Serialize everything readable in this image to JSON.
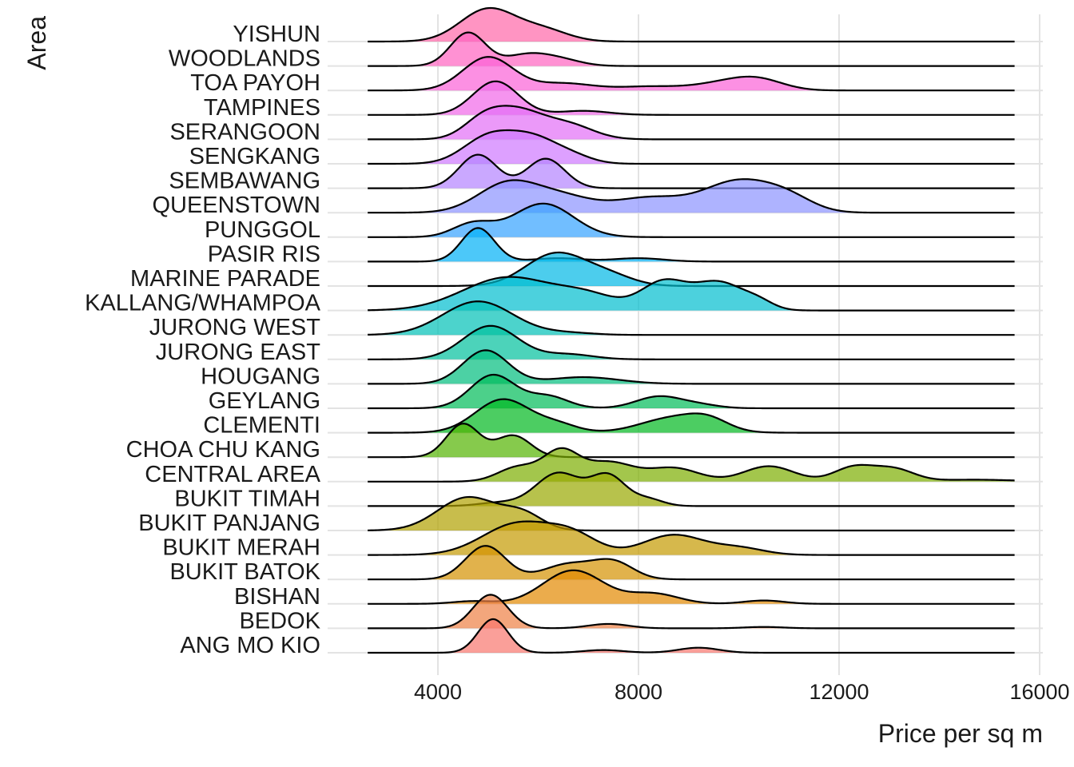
{
  "chart_data": {
    "type": "ridgeline",
    "xlabel": "Price per sq m",
    "ylabel": "Area",
    "x_ticks": [
      4000,
      8000,
      12000,
      16000
    ],
    "xlim": [
      2600,
      16000
    ],
    "grid": true,
    "legend": "none",
    "series": [
      {
        "name": "ANG MO KIO",
        "color": "#F8766D",
        "peaks": [
          [
            5100,
            1.0,
            300
          ],
          [
            7300,
            0.08,
            400
          ],
          [
            9200,
            0.15,
            400
          ]
        ]
      },
      {
        "name": "BEDOK",
        "color": "#EE8044",
        "peaks": [
          [
            5050,
            1.0,
            350
          ],
          [
            7400,
            0.13,
            400
          ],
          [
            10500,
            0.04,
            400
          ]
        ]
      },
      {
        "name": "BISHAN",
        "color": "#E38900",
        "peaks": [
          [
            4700,
            0.08,
            400
          ],
          [
            6700,
            1.0,
            600
          ],
          [
            8300,
            0.3,
            500
          ],
          [
            10500,
            0.1,
            400
          ]
        ]
      },
      {
        "name": "BUKIT BATOK",
        "color": "#D49200",
        "peaks": [
          [
            4950,
            1.0,
            400
          ],
          [
            6600,
            0.45,
            500
          ],
          [
            7500,
            0.5,
            400
          ]
        ]
      },
      {
        "name": "BUKIT MERAH",
        "color": "#C49A00",
        "peaks": [
          [
            5600,
            0.55,
            700
          ],
          [
            6700,
            0.3,
            500
          ],
          [
            8700,
            0.35,
            600
          ],
          [
            10000,
            0.12,
            500
          ]
        ]
      },
      {
        "name": "BUKIT PANJANG",
        "color": "#B0A100",
        "peaks": [
          [
            4600,
            1.0,
            600
          ],
          [
            5700,
            0.45,
            400
          ]
        ]
      },
      {
        "name": "BUKIT TIMAH",
        "color": "#99A800",
        "peaks": [
          [
            6400,
            1.0,
            450
          ],
          [
            7400,
            0.9,
            350
          ],
          [
            5200,
            0.1,
            400
          ],
          [
            8200,
            0.2,
            300
          ]
        ]
      },
      {
        "name": "CENTRAL AREA",
        "color": "#7CAE00",
        "peaks": [
          [
            5600,
            0.3,
            400
          ],
          [
            6450,
            0.6,
            350
          ],
          [
            7400,
            0.4,
            500
          ],
          [
            8700,
            0.28,
            500
          ],
          [
            10600,
            0.32,
            500
          ],
          [
            12300,
            0.3,
            400
          ],
          [
            13100,
            0.25,
            400
          ],
          [
            14700,
            0.04,
            800
          ]
        ]
      },
      {
        "name": "CHOA CHU KANG",
        "color": "#53B400",
        "peaks": [
          [
            4500,
            1.0,
            330
          ],
          [
            5500,
            0.65,
            350
          ]
        ]
      },
      {
        "name": "CLEMENTI",
        "color": "#00B81F",
        "peaks": [
          [
            5300,
            0.9,
            550
          ],
          [
            6400,
            0.2,
            400
          ],
          [
            8700,
            0.4,
            650
          ],
          [
            9400,
            0.25,
            400
          ]
        ]
      },
      {
        "name": "GEYLANG",
        "color": "#00BC59",
        "peaks": [
          [
            5100,
            1.0,
            450
          ],
          [
            6200,
            0.35,
            400
          ],
          [
            8400,
            0.35,
            450
          ],
          [
            9200,
            0.1,
            400
          ]
        ]
      },
      {
        "name": "HOUGANG",
        "color": "#00BE7D",
        "peaks": [
          [
            4950,
            1.0,
            450
          ],
          [
            6900,
            0.2,
            700
          ]
        ]
      },
      {
        "name": "JURONG EAST",
        "color": "#00C19C",
        "peaks": [
          [
            5050,
            1.0,
            550
          ],
          [
            6600,
            0.15,
            500
          ]
        ]
      },
      {
        "name": "JURONG WEST",
        "color": "#00C1B7",
        "peaks": [
          [
            4800,
            1.0,
            700
          ],
          [
            6600,
            0.06,
            500
          ]
        ]
      },
      {
        "name": "KALLANG/WHAMPOA",
        "color": "#00BECF",
        "peaks": [
          [
            5400,
            0.5,
            900
          ],
          [
            7000,
            0.2,
            600
          ],
          [
            8500,
            0.42,
            450
          ],
          [
            9600,
            0.42,
            500
          ],
          [
            10400,
            0.1,
            300
          ]
        ]
      },
      {
        "name": "MARINE PARADE",
        "color": "#00B8E5",
        "peaks": [
          [
            6350,
            1.0,
            600
          ],
          [
            7400,
            0.3,
            500
          ]
        ]
      },
      {
        "name": "PASIR RIS",
        "color": "#00B0F6",
        "peaks": [
          [
            4800,
            1.0,
            330
          ],
          [
            6400,
            0.1,
            500
          ],
          [
            8000,
            0.1,
            500
          ]
        ]
      },
      {
        "name": "PUNGGOL",
        "color": "#35A2FF",
        "peaks": [
          [
            4700,
            0.4,
            400
          ],
          [
            6100,
            1.0,
            600
          ]
        ]
      },
      {
        "name": "QUEENSTOWN",
        "color": "#8B93FF",
        "peaks": [
          [
            5400,
            0.3,
            600
          ],
          [
            6500,
            0.15,
            600
          ],
          [
            8200,
            0.15,
            700
          ],
          [
            10000,
            0.32,
            700
          ],
          [
            11000,
            0.12,
            500
          ]
        ]
      },
      {
        "name": "SEMBAWANG",
        "color": "#B483FF",
        "peaks": [
          [
            4800,
            1.0,
            380
          ],
          [
            6150,
            0.88,
            380
          ]
        ]
      },
      {
        "name": "SENGKANG",
        "color": "#CF78FF",
        "peaks": [
          [
            5000,
            0.85,
            500
          ],
          [
            5900,
            0.8,
            500
          ],
          [
            6700,
            0.2,
            400
          ]
        ]
      },
      {
        "name": "SERANGOON",
        "color": "#E36EF6",
        "peaks": [
          [
            4900,
            0.5,
            400
          ],
          [
            5600,
            0.75,
            500
          ],
          [
            6600,
            0.4,
            500
          ]
        ]
      },
      {
        "name": "TAMPINES",
        "color": "#F166E8",
        "peaks": [
          [
            5150,
            1.0,
            450
          ],
          [
            6900,
            0.12,
            500
          ]
        ]
      },
      {
        "name": "TOA PAYOH",
        "color": "#FB61D7",
        "peaks": [
          [
            5000,
            0.7,
            500
          ],
          [
            6500,
            0.15,
            600
          ],
          [
            8200,
            0.08,
            600
          ],
          [
            9700,
            0.15,
            600
          ],
          [
            10400,
            0.2,
            500
          ]
        ]
      },
      {
        "name": "WOODLANDS",
        "color": "#FF62C1",
        "peaks": [
          [
            4600,
            1.0,
            350
          ],
          [
            5800,
            0.35,
            450
          ],
          [
            6500,
            0.15,
            400
          ]
        ]
      },
      {
        "name": "YISHUN",
        "color": "#FF67A8",
        "peaks": [
          [
            5000,
            1.0,
            550
          ],
          [
            6100,
            0.35,
            500
          ]
        ]
      }
    ]
  }
}
